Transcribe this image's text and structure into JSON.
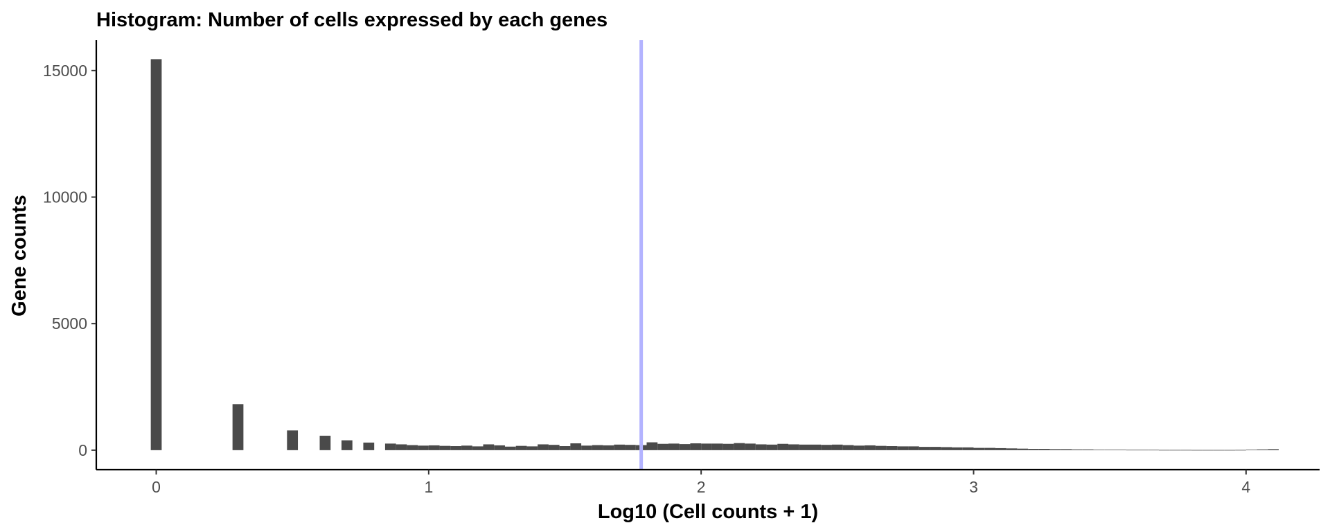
{
  "chart_data": {
    "type": "bar",
    "title": "Histogram: Number of cells expressed by each genes",
    "xlabel": "Log10 (Cell counts + 1)",
    "ylabel": "Gene counts",
    "xlim": [
      -0.22,
      4.27
    ],
    "ylim": [
      -770,
      16200
    ],
    "xticks": [
      0,
      1,
      2,
      3,
      4
    ],
    "yticks": [
      0,
      5000,
      10000,
      15000
    ],
    "bin_width": 0.04,
    "grid": false,
    "legend": "none",
    "bar_color": "#4a4a4a",
    "reference_line": {
      "x": 1.78,
      "color": "#b3b3ff"
    },
    "x": [
      0.0,
      0.3,
      0.5,
      0.62,
      0.7,
      0.78,
      0.86,
      0.9,
      0.94,
      0.98,
      1.02,
      1.06,
      1.1,
      1.14,
      1.18,
      1.22,
      1.26,
      1.3,
      1.34,
      1.38,
      1.42,
      1.46,
      1.5,
      1.54,
      1.58,
      1.62,
      1.66,
      1.7,
      1.74,
      1.78,
      1.82,
      1.86,
      1.9,
      1.94,
      1.98,
      2.02,
      2.06,
      2.1,
      2.14,
      2.18,
      2.22,
      2.26,
      2.3,
      2.34,
      2.38,
      2.42,
      2.46,
      2.5,
      2.54,
      2.58,
      2.62,
      2.66,
      2.7,
      2.74,
      2.78,
      2.82,
      2.86,
      2.9,
      2.94,
      2.98,
      3.02,
      3.06,
      3.1,
      3.14,
      3.18,
      3.22,
      3.26,
      3.3,
      3.34,
      3.38,
      3.42,
      3.46,
      3.5,
      3.54,
      3.58,
      3.62,
      3.66,
      3.7,
      3.74,
      3.78,
      3.82,
      3.86,
      3.9,
      3.94,
      3.98,
      4.02,
      4.06,
      4.1
    ],
    "values": [
      15450,
      1820,
      780,
      570,
      390,
      300,
      260,
      230,
      200,
      180,
      190,
      170,
      160,
      180,
      150,
      230,
      190,
      140,
      170,
      150,
      230,
      210,
      160,
      270,
      180,
      200,
      190,
      220,
      210,
      200,
      310,
      250,
      260,
      240,
      270,
      260,
      260,
      250,
      280,
      260,
      230,
      220,
      250,
      230,
      220,
      220,
      210,
      220,
      200,
      180,
      190,
      170,
      160,
      150,
      150,
      130,
      130,
      120,
      110,
      110,
      90,
      90,
      80,
      70,
      60,
      50,
      50,
      40,
      40,
      30,
      30,
      20,
      20,
      20,
      15,
      15,
      15,
      10,
      10,
      10,
      8,
      8,
      8,
      8,
      10,
      20,
      30,
      40
    ]
  }
}
